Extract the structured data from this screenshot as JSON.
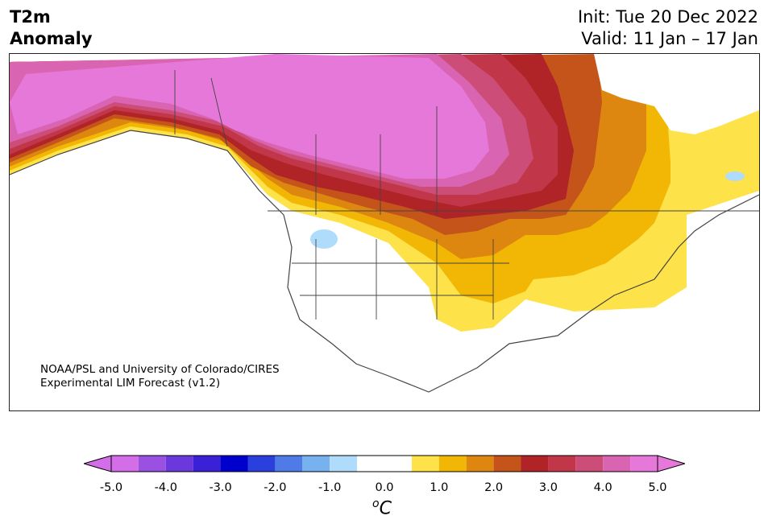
{
  "title": {
    "left_line1": "T2m",
    "left_line2": "Anomaly",
    "init": "Init: Tue 20 Dec 2022",
    "valid": "Valid: 11 Jan – 17 Jan"
  },
  "credit": {
    "line1": "NOAA/PSL and University of Colorado/CIRES",
    "line2": "Experimental LIM Forecast (v1.2)"
  },
  "colorbar": {
    "unit_base": "C",
    "unit_sup": "o",
    "tick_labels": [
      "-5.0",
      "-4.0",
      "-3.0",
      "-2.0",
      "-1.0",
      "0.0",
      "1.0",
      "2.0",
      "3.0",
      "4.0",
      "5.0"
    ],
    "levels": [
      -5.0,
      -4.5,
      -4.0,
      -3.5,
      -3.0,
      -2.5,
      -2.0,
      -1.5,
      -1.0,
      -0.5,
      0.5,
      1.0,
      1.5,
      2.0,
      2.5,
      3.0,
      3.5,
      4.0,
      4.5,
      5.0
    ],
    "colors": [
      "#d36ee8",
      "#9a50e0",
      "#6a38dc",
      "#3a20d6",
      "#0000cc",
      "#2a3fdc",
      "#4f7be8",
      "#78b1ef",
      "#aedcfa",
      "#ffffff",
      "#fde24a",
      "#f2b705",
      "#dd8710",
      "#c4541a",
      "#b02326",
      "#c13648",
      "#cc4d78",
      "#d964b2",
      "#e678da"
    ],
    "extend_min_color": "#d36ee8",
    "extend_max_color": "#e678da"
  }
}
